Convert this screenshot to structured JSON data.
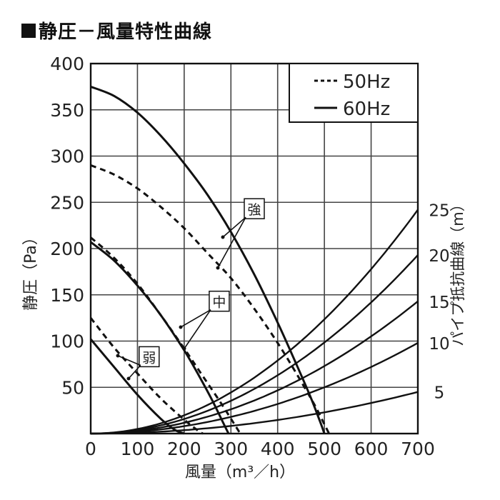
{
  "title": "静圧－風量特性曲線",
  "chart_data": {
    "type": "line",
    "xlabel": "風量（m³／h）",
    "ylabel_left": "静圧（Pa）",
    "ylabel_right": "パイプ抵抗曲線（m）",
    "xlim": [
      0,
      700
    ],
    "ylim": [
      0,
      400
    ],
    "x_ticks": [
      0,
      100,
      200,
      300,
      400,
      500,
      600,
      700
    ],
    "y_ticks": [
      50,
      100,
      150,
      200,
      250,
      300,
      350,
      400
    ],
    "right_ticks": [
      {
        "label": "5",
        "y": 45
      },
      {
        "label": "10",
        "y": 98
      },
      {
        "label": "15",
        "y": 143
      },
      {
        "label": "20",
        "y": 193
      },
      {
        "label": "25",
        "y": 242
      }
    ],
    "grid": true,
    "legend": {
      "position": "top-right",
      "entries": [
        {
          "label": "50Hz",
          "style": "dashed"
        },
        {
          "label": "60Hz",
          "style": "solid"
        }
      ]
    },
    "series": [
      {
        "name": "強",
        "freq": "60Hz",
        "style": "solid",
        "x": [
          0,
          50,
          100,
          150,
          200,
          250,
          300,
          350,
          400,
          440,
          470,
          490,
          500
        ],
        "y": [
          375,
          365,
          347,
          322,
          292,
          258,
          218,
          172,
          120,
          75,
          40,
          14,
          0
        ]
      },
      {
        "name": "強",
        "freq": "50Hz",
        "style": "dashed",
        "x": [
          0,
          50,
          100,
          150,
          200,
          250,
          300,
          350,
          400,
          440,
          480,
          500,
          510
        ],
        "y": [
          290,
          280,
          265,
          245,
          222,
          195,
          168,
          135,
          98,
          65,
          30,
          10,
          0
        ]
      },
      {
        "name": "中",
        "freq": "60Hz",
        "style": "solid",
        "x": [
          0,
          50,
          100,
          150,
          200,
          230,
          260,
          285,
          295
        ],
        "y": [
          207,
          187,
          160,
          128,
          90,
          64,
          36,
          10,
          0
        ]
      },
      {
        "name": "中",
        "freq": "50Hz",
        "style": "dashed",
        "x": [
          0,
          50,
          100,
          150,
          200,
          240,
          280,
          310,
          320
        ],
        "y": [
          212,
          190,
          162,
          128,
          92,
          62,
          32,
          8,
          0
        ]
      },
      {
        "name": "弱",
        "freq": "60Hz",
        "style": "solid",
        "x": [
          0,
          50,
          100,
          150,
          180,
          200
        ],
        "y": [
          102,
          72,
          42,
          16,
          4,
          0
        ]
      },
      {
        "name": "弱",
        "freq": "50Hz",
        "style": "dashed",
        "x": [
          0,
          50,
          100,
          150,
          200,
          230,
          240
        ],
        "y": [
          125,
          93,
          65,
          38,
          15,
          3,
          0
        ]
      }
    ],
    "resistance_curves": [
      {
        "name": "5",
        "y_at_700": 45
      },
      {
        "name": "10",
        "y_at_700": 98
      },
      {
        "name": "15",
        "y_at_700": 143
      },
      {
        "name": "20",
        "y_at_700": 193
      },
      {
        "name": "25",
        "y_at_700": 242
      }
    ],
    "annotations": [
      {
        "label": "強",
        "x": 350,
        "y": 240
      },
      {
        "label": "中",
        "x": 275,
        "y": 140
      },
      {
        "label": "弱",
        "x": 125,
        "y": 80
      }
    ]
  }
}
